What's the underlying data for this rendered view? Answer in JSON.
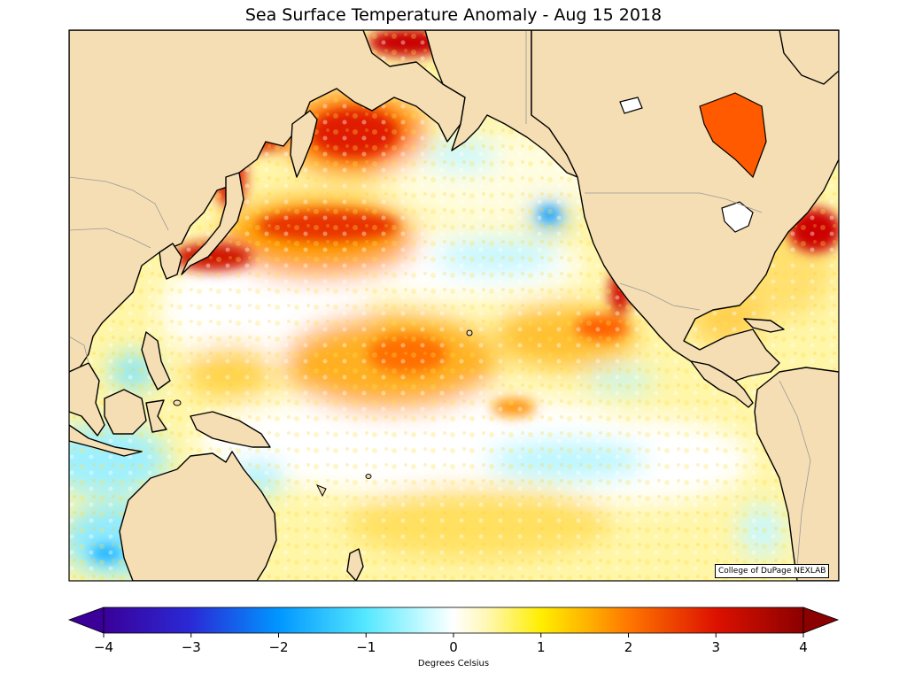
{
  "title": "Sea Surface Temperature Anomaly - Aug 15 2018",
  "credit": "College of DuPage NEXLAB",
  "colors": {
    "land": "#f5deb3",
    "coastline": "#000000",
    "borders": "#999999",
    "warm_strong": "#cc1100",
    "warm_mid": "#ff8800",
    "warm_light": "#ffee44",
    "neutral": "#ffffff",
    "cool_light": "#bff7ff",
    "cool_mid": "#44d6ff"
  },
  "colorbar": {
    "label": "Degrees Celsius",
    "min": -4,
    "max": 4,
    "extend": "both",
    "ticks": [
      "−4",
      "−3",
      "−2",
      "−1",
      "0",
      "1",
      "2",
      "3",
      "4"
    ],
    "stops": [
      {
        "value": -4,
        "color": "#3a0099"
      },
      {
        "value": -3,
        "color": "#2a2ad6"
      },
      {
        "value": -2,
        "color": "#0096ff"
      },
      {
        "value": -1,
        "color": "#55e8ff"
      },
      {
        "value": -0.3,
        "color": "#ccfbff"
      },
      {
        "value": 0,
        "color": "#ffffff"
      },
      {
        "value": 0.4,
        "color": "#fff7b0"
      },
      {
        "value": 1,
        "color": "#ffee00"
      },
      {
        "value": 1.6,
        "color": "#ffaa00"
      },
      {
        "value": 2,
        "color": "#ff7700"
      },
      {
        "value": 3,
        "color": "#dd1100"
      },
      {
        "value": 4,
        "color": "#8b0000"
      }
    ]
  }
}
